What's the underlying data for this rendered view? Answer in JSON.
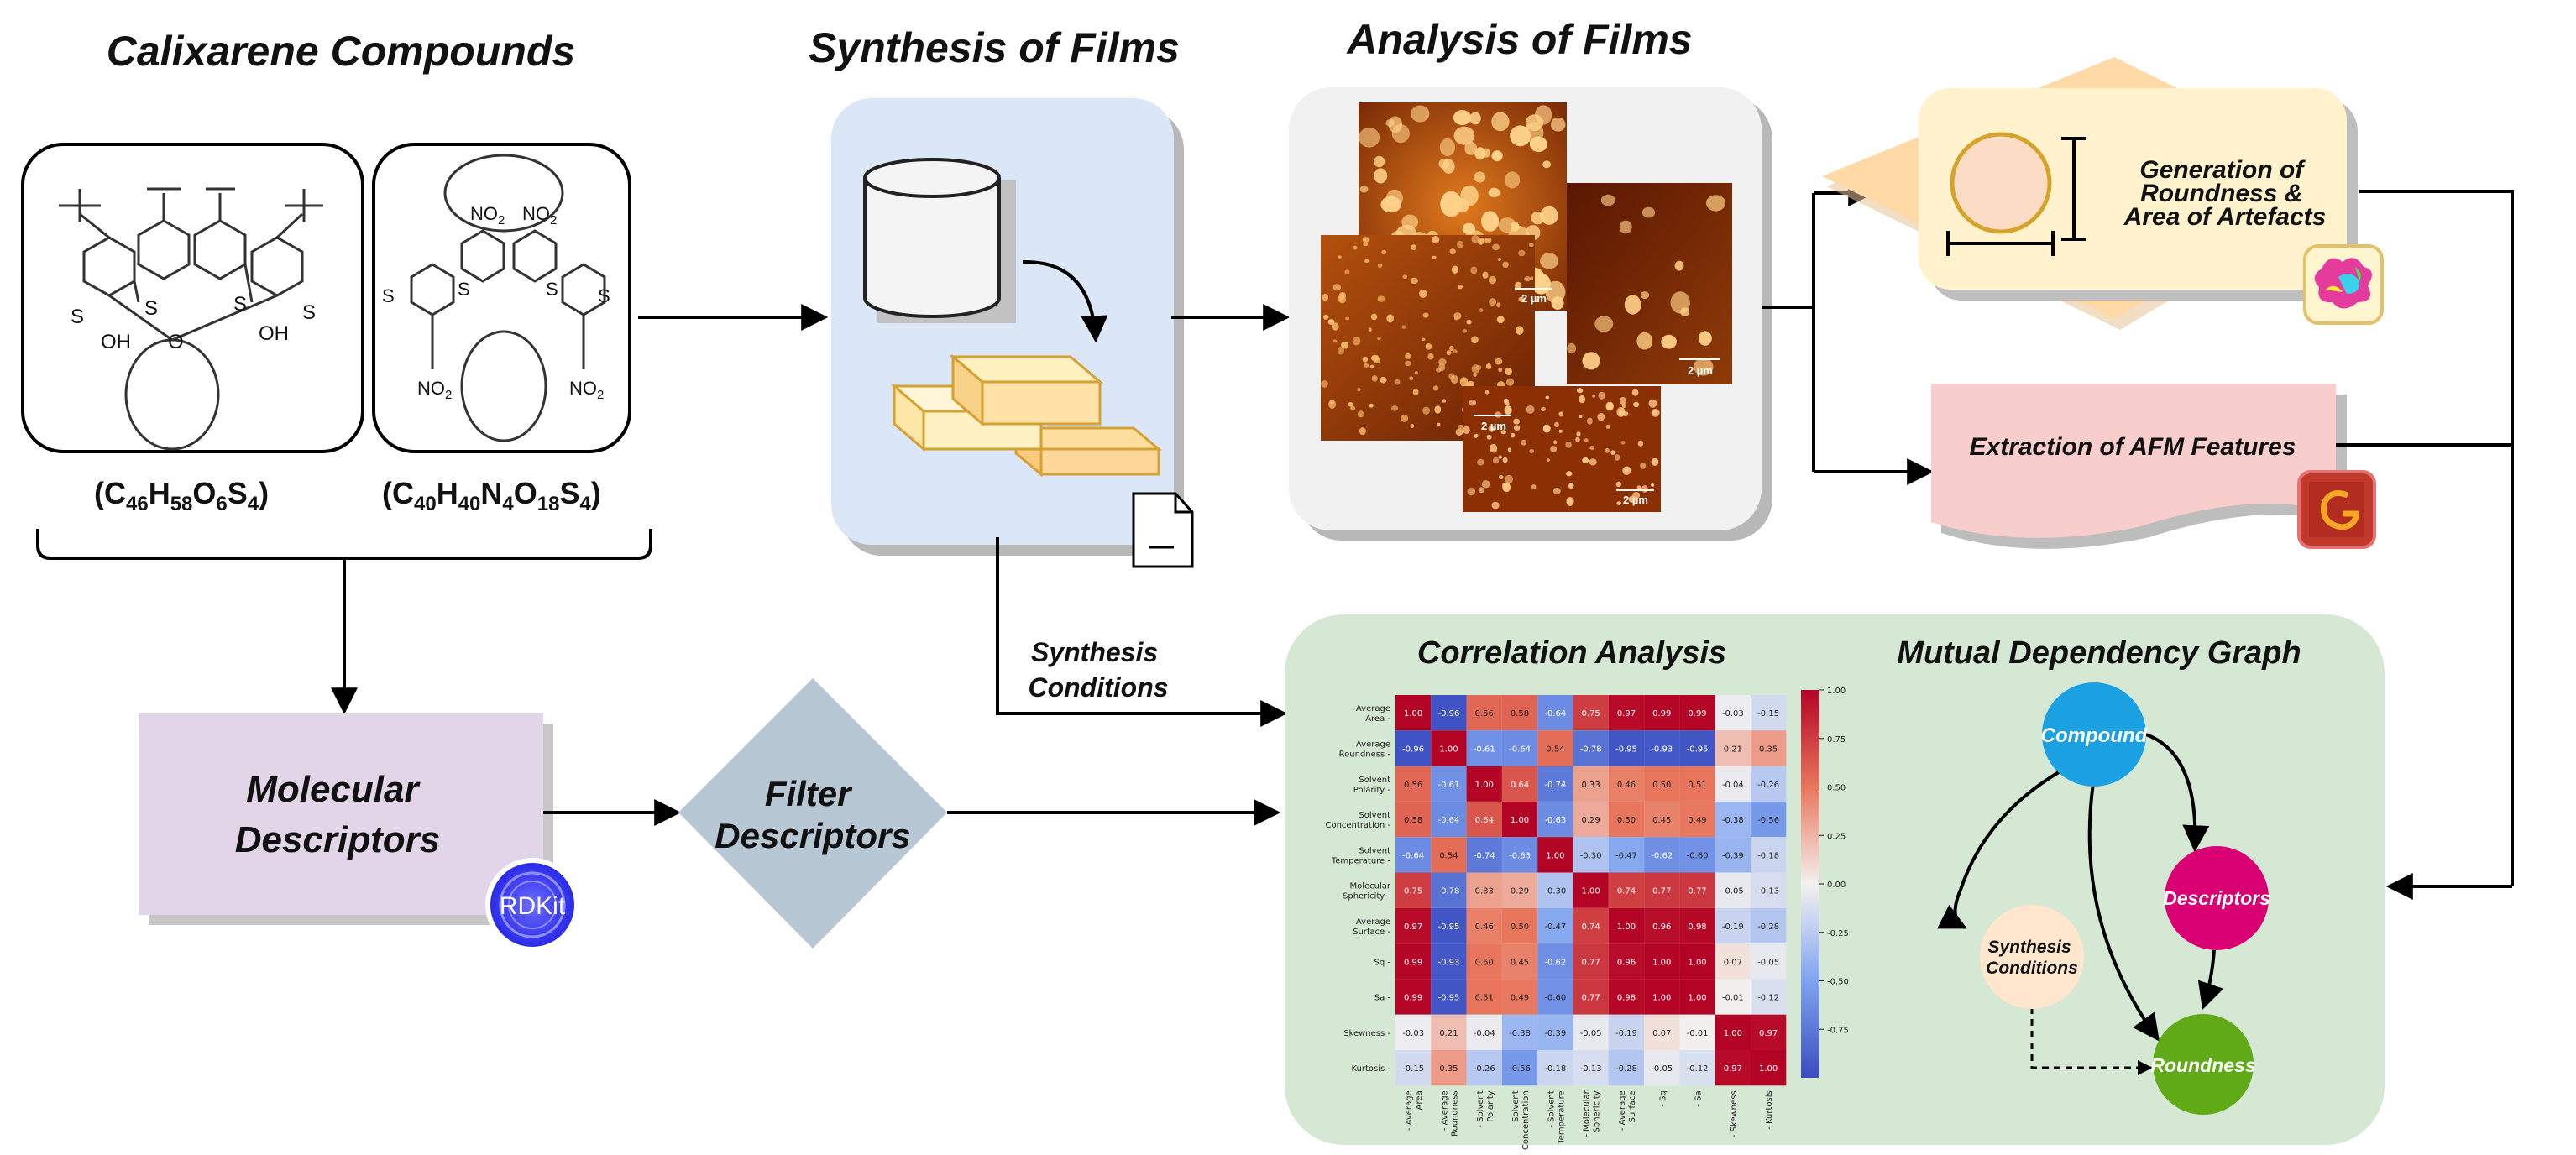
{
  "sections": {
    "calixarene": "Calixarene Compounds",
    "synthesis": "Synthesis of Films",
    "analysis": "Analysis of Films"
  },
  "formulas": {
    "left": {
      "open": "(C",
      "s1": "46",
      "a": "H",
      "s2": "58",
      "b": "O",
      "s3": "6",
      "c": "S",
      "s4": "4",
      "close": ")"
    },
    "right": {
      "open": "(C",
      "s1": "40",
      "a": "H",
      "s2": "40",
      "b": "N",
      "s3": "4",
      "c": "O",
      "s4": "18",
      "d": "S",
      "s5": "4",
      "close": ")"
    }
  },
  "molecule_labels": {
    "oh": "OH",
    "s": "S",
    "o": "O",
    "no2": "NO",
    "no2_sub": "2"
  },
  "generation_box": {
    "line1": "Generation of",
    "line2": "Roundness &",
    "line3": "Area of Artefacts"
  },
  "extraction_box": "Extraction of AFM Features",
  "afm_scale": "2 µm",
  "synthesis_conditions_label": {
    "line1": "Synthesis",
    "line2": "Conditions"
  },
  "molecular_descriptors": {
    "line1": "Molecular",
    "line2": "Descriptors"
  },
  "rdkit_badge": "RDKit",
  "filter_descriptors": {
    "line1": "Filter",
    "line2": "Descriptors"
  },
  "panel_titles": {
    "correlation": "Correlation Analysis",
    "mutual": "Mutual Dependency Graph"
  },
  "graph_nodes": {
    "compound": "Compound",
    "descriptors": "Descriptors",
    "synthesis_line1": "Synthesis",
    "synthesis_line2": "Conditions",
    "roundness": "Roundness"
  },
  "colors": {
    "synthesis_panel": "#dbe7f7",
    "afm_panel": "#f1f1f1",
    "analysis_panel": "#d5e8d4",
    "molecular_box": "#e1d5e7",
    "filter_diamond": "#b8c7d4",
    "generation_box": "#fff2cc",
    "generation_diamond": "#ffdaa6",
    "extraction_box": "#f8cecc",
    "compound_node": "#1ba1e2",
    "descriptors_node": "#d80073",
    "synthesis_node": "#ffe6cc",
    "roundness_node": "#60a917",
    "rdkit": "#3b3bef"
  },
  "chart_data": {
    "type": "heatmap",
    "title": "Correlation Analysis",
    "row_labels": [
      [
        "Average",
        "Area"
      ],
      [
        "Average",
        "Roundness"
      ],
      [
        "Solvent",
        "Polarity"
      ],
      [
        "Solvent",
        "Concentration"
      ],
      [
        "Solvent",
        "Temperature"
      ],
      [
        "Molecular",
        "Sphericity"
      ],
      [
        "Average",
        "Surface"
      ],
      [
        "Sq"
      ],
      [
        "Sa"
      ],
      [
        "Skewness"
      ],
      [
        "Kurtosis"
      ]
    ],
    "col_labels": [
      [
        "Average",
        "Area"
      ],
      [
        "Average",
        "Roundness"
      ],
      [
        "Solvent",
        "Polarity"
      ],
      [
        "Solvent",
        "Concentration"
      ],
      [
        "Solvent",
        "Temperature"
      ],
      [
        "Molecular",
        "Sphericity"
      ],
      [
        "Average",
        "Surface"
      ],
      [
        "Sq"
      ],
      [
        "Sa"
      ],
      [
        "Skewness"
      ],
      [
        "Kurtosis"
      ]
    ],
    "values": [
      [
        "1.00",
        "-0.96",
        "0.56",
        "0.58",
        "-0.64",
        "0.75",
        "0.97",
        "0.99",
        "0.99",
        "-0.03",
        "-0.15"
      ],
      [
        "-0.96",
        "1.00",
        "-0.61",
        "-0.64",
        "0.54",
        "-0.78",
        "-0.95",
        "-0.93",
        "-0.95",
        "0.21",
        "0.35"
      ],
      [
        "0.56",
        "-0.61",
        "1.00",
        "0.64",
        "-0.74",
        "0.33",
        "0.46",
        "0.50",
        "0.51",
        "-0.04",
        "-0.26"
      ],
      [
        "0.58",
        "-0.64",
        "0.64",
        "1.00",
        "-0.63",
        "0.29",
        "0.50",
        "0.45",
        "0.49",
        "-0.38",
        "-0.56"
      ],
      [
        "-0.64",
        "0.54",
        "-0.74",
        "-0.63",
        "1.00",
        "-0.30",
        "-0.47",
        "-0.62",
        "-0.60",
        "-0.39",
        "-0.18"
      ],
      [
        "0.75",
        "-0.78",
        "0.33",
        "0.29",
        "-0.30",
        "1.00",
        "0.74",
        "0.77",
        "0.77",
        "-0.05",
        "-0.13"
      ],
      [
        "0.97",
        "-0.95",
        "0.46",
        "0.50",
        "-0.47",
        "0.74",
        "1.00",
        "0.96",
        "0.98",
        "-0.19",
        "-0.28"
      ],
      [
        "0.99",
        "-0.93",
        "0.50",
        "0.45",
        "-0.62",
        "0.77",
        "0.96",
        "1.00",
        "1.00",
        "0.07",
        "-0.05"
      ],
      [
        "0.99",
        "-0.95",
        "0.51",
        "0.49",
        "-0.60",
        "0.77",
        "0.98",
        "1.00",
        "1.00",
        "-0.01",
        "-0.12"
      ],
      [
        "-0.03",
        "0.21",
        "-0.04",
        "-0.38",
        "-0.39",
        "-0.05",
        "-0.19",
        "0.07",
        "-0.01",
        "1.00",
        "0.97"
      ],
      [
        "-0.15",
        "0.35",
        "-0.26",
        "-0.56",
        "-0.18",
        "-0.13",
        "-0.28",
        "-0.05",
        "-0.12",
        "0.97",
        "1.00"
      ]
    ],
    "colorbar_ticks": [
      "1.00",
      "0.75",
      "0.50",
      "0.25",
      "0.00",
      "-0.25",
      "-0.50",
      "-0.75"
    ],
    "vmin": -1,
    "vmax": 1
  }
}
